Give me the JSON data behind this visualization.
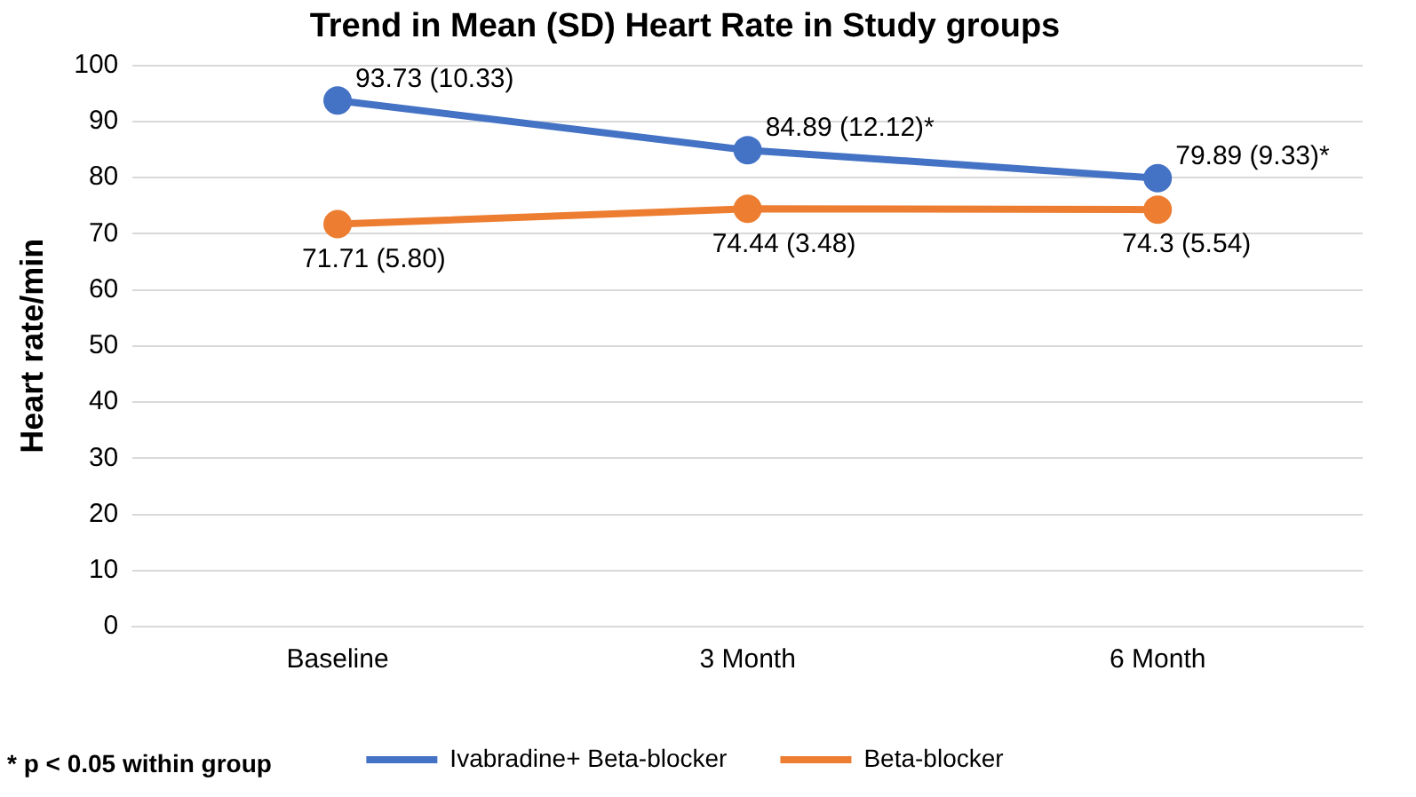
{
  "chart_data": {
    "type": "line",
    "title": "Trend in Mean (SD) Heart Rate in Study groups",
    "ylabel": "Heart rate/min",
    "categories": [
      "Baseline",
      "3 Month",
      "6 Month"
    ],
    "series": [
      {
        "name": "Ivabradine+ Beta-blocker",
        "color": "#4472c4",
        "values": [
          93.73,
          84.89,
          79.89
        ],
        "value_labels": [
          "93.73 (10.33)",
          "84.89 (12.12)*",
          "79.89 (9.33)*"
        ]
      },
      {
        "name": "Beta-blocker",
        "color": "#ed7d31",
        "values": [
          71.71,
          74.44,
          74.3
        ],
        "value_labels": [
          "71.71 (5.80)",
          "74.44 (3.48)",
          "74.3 (5.54)"
        ]
      }
    ],
    "ylim": [
      0,
      100
    ],
    "yticks": [
      0,
      10,
      20,
      30,
      40,
      50,
      60,
      70,
      80,
      90,
      100
    ],
    "grid": "y",
    "legend": "bottom",
    "marker": "circle",
    "line_style": "solid",
    "annotations": [
      "* p < 0.05 within group"
    ]
  }
}
